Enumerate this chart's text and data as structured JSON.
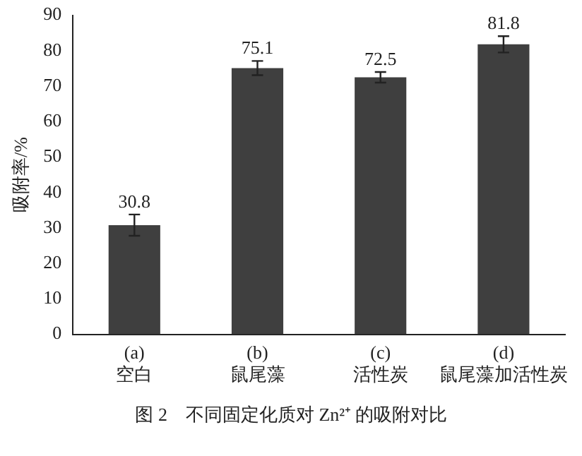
{
  "chart_data": {
    "type": "bar",
    "title": "图 2　不同固定化质对 Zn²⁺ 的吸附对比",
    "ylabel": "吸附率/%",
    "categories": [
      "(a)\n空白",
      "(b)\n鼠尾藻",
      "(c)\n活性炭",
      "(d)\n鼠尾藻加活性炭"
    ],
    "values": [
      30.8,
      75.1,
      72.5,
      81.8
    ],
    "errors": [
      3,
      2,
      1.5,
      2.3
    ],
    "color": "#3f3f3f",
    "ylim": [
      0,
      90
    ],
    "yticks": [
      0,
      10,
      20,
      30,
      40,
      50,
      60,
      70,
      80,
      90
    ],
    "grid": false,
    "legend": false,
    "data_labels": true
  }
}
